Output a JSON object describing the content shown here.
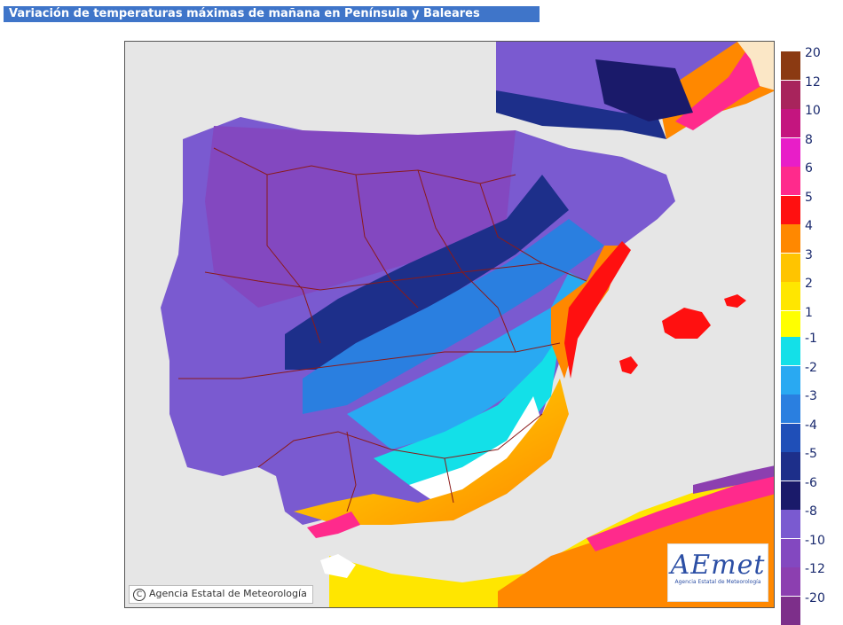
{
  "title": "Variación de temperaturas máximas de mañana en Península y Baleares",
  "copyright": "Agencia Estatal de Meteorología",
  "logo": {
    "word": "AEmet",
    "subtitle": "Agencia Estatal de Meteorología"
  },
  "legend": {
    "positive": [
      {
        "label": "20",
        "color": "#8b3a12"
      },
      {
        "label": "12",
        "color": "#a8245c"
      },
      {
        "label": "10",
        "color": "#c4157f"
      },
      {
        "label": "8",
        "color": "#e81ec8"
      },
      {
        "label": "6",
        "color": "#ff2a8c"
      },
      {
        "label": "5",
        "color": "#ff1010"
      },
      {
        "label": "4",
        "color": "#ff8800"
      },
      {
        "label": "3",
        "color": "#ffc400"
      },
      {
        "label": "2",
        "color": "#ffe600"
      },
      {
        "label": "1",
        "color": "#ffff00"
      }
    ],
    "negative": [
      {
        "label": "-1",
        "color": "#13e0e8"
      },
      {
        "label": "-2",
        "color": "#29a9f2"
      },
      {
        "label": "-3",
        "color": "#2a7fe0"
      },
      {
        "label": "-4",
        "color": "#1f4fb8"
      },
      {
        "label": "-5",
        "color": "#1d2f8a"
      },
      {
        "label": "-6",
        "color": "#1a1a6a"
      },
      {
        "label": "-8",
        "color": "#7a5ad0"
      },
      {
        "label": "-10",
        "color": "#8348c0"
      },
      {
        "label": "-12",
        "color": "#8c3fb0"
      },
      {
        "label": "-20",
        "color": "#7d2f8a"
      }
    ]
  }
}
